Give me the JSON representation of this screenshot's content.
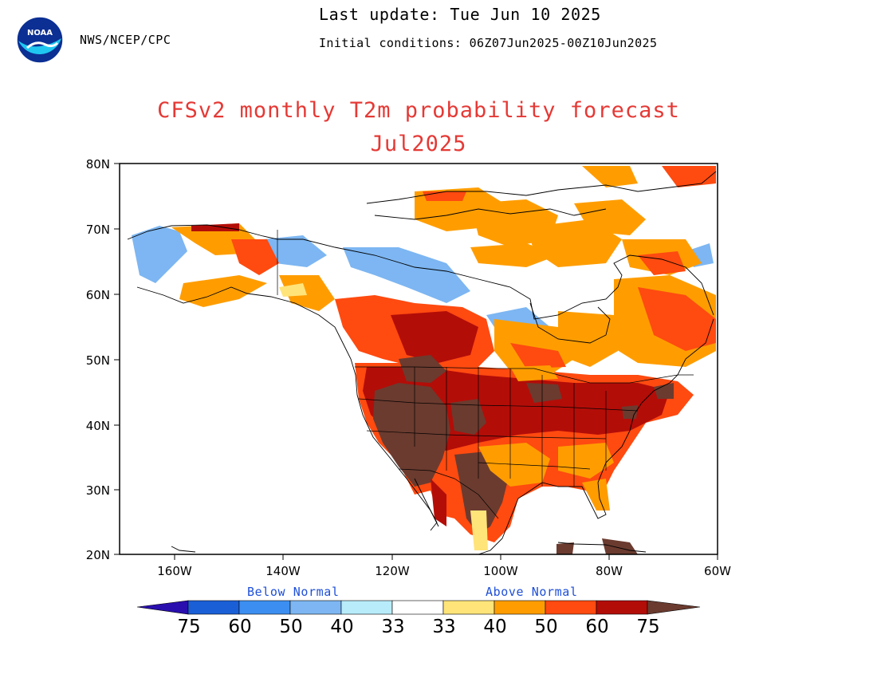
{
  "header": {
    "agency": "NWS/NCEP/CPC",
    "last_update": "Last update: Tue Jun 10 2025",
    "initial_conditions": "Initial conditions: 06Z07Jun2025-00Z10Jun2025",
    "logo_text": "NOAA"
  },
  "title": "CFSv2 monthly T2m probability forecast",
  "subtitle": "Jul2025",
  "map": {
    "region": "North America",
    "lon_range": [
      -170,
      -60
    ],
    "lat_range": [
      20,
      80
    ],
    "lat_labels": [
      "80N",
      "70N",
      "60N",
      "50N",
      "40N",
      "30N",
      "20N"
    ],
    "lon_labels": [
      "160W",
      "140W",
      "120W",
      "100W",
      "80W",
      "60W"
    ]
  },
  "colorbar": {
    "below_label": "Below Normal",
    "above_label": "Above Normal",
    "ticks": [
      "75",
      "60",
      "50",
      "40",
      "33",
      "33",
      "40",
      "50",
      "60",
      "75"
    ],
    "colors": {
      "below_75": "#2a0fae",
      "below_60": "#1a5fd6",
      "below_50": "#3c8ef0",
      "below_40": "#7db6f2",
      "below_33": "#b8ecfb",
      "neutral": "#ffffff",
      "above_33": "#ffe47a",
      "above_40": "#ff9d00",
      "above_50": "#ff4a10",
      "above_60": "#b30d08",
      "above_75": "#6b3b2f"
    }
  }
}
